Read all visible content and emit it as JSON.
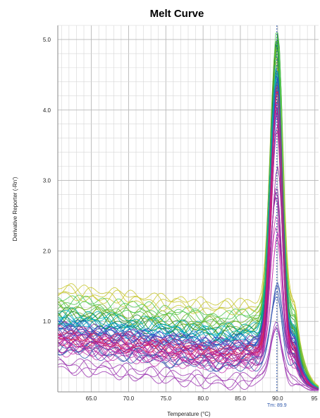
{
  "chart_data": {
    "type": "line",
    "title": "Melt Curve",
    "xlabel": "Temperature (°C)",
    "ylabel": "Derivative Reporter (-Rn')",
    "xlim": [
      60.5,
      95.5
    ],
    "ylim": [
      0,
      5.2
    ],
    "x_ticks": [
      65,
      70,
      75,
      80,
      85,
      90,
      95
    ],
    "x_tick_labels": [
      "65.0",
      "70.0",
      "75.0",
      "80.0",
      "85.0",
      "90.0",
      "95"
    ],
    "y_ticks": [
      1,
      2,
      3,
      4,
      5
    ],
    "y_tick_labels": [
      "1.0",
      "2.0",
      "3.0",
      "4.0",
      "5.0"
    ],
    "grid": true,
    "annotation": {
      "text": "Tm: 89.9",
      "x": 89.9
    },
    "num_traces": 64,
    "series": [
      {
        "color": "#c8c832",
        "baseline": 1.55,
        "peak": 5.0
      },
      {
        "color": "#50c850",
        "baseline": 1.4,
        "peak": 5.15
      },
      {
        "color": "#1e8c28",
        "baseline": 1.2,
        "peak": 5.1
      },
      {
        "color": "#78b428",
        "baseline": 1.3,
        "peak": 4.9
      },
      {
        "color": "#0096c8",
        "baseline": 1.1,
        "peak": 4.95
      },
      {
        "color": "#1e64b4",
        "baseline": 1.05,
        "peak": 4.8
      },
      {
        "color": "#00b4b4",
        "baseline": 1.2,
        "peak": 4.6
      },
      {
        "color": "#3c3cc8",
        "baseline": 1.0,
        "peak": 4.5
      },
      {
        "color": "#8c3cb4",
        "baseline": 1.0,
        "peak": 4.4
      },
      {
        "color": "#b41e78",
        "baseline": 0.95,
        "peak": 4.3
      },
      {
        "color": "#dc1e50",
        "baseline": 0.9,
        "peak": 4.45
      },
      {
        "color": "#c81e96",
        "baseline": 0.85,
        "peak": 4.2
      },
      {
        "color": "#8c1e96",
        "baseline": 0.8,
        "peak": 3.2
      },
      {
        "color": "#c83cb4",
        "baseline": 0.75,
        "peak": 2.5
      },
      {
        "color": "#3c5ab4",
        "baseline": 0.75,
        "peak": 1.55
      },
      {
        "color": "#a03cb4",
        "baseline": 0.5,
        "peak": 1.0
      }
    ]
  }
}
